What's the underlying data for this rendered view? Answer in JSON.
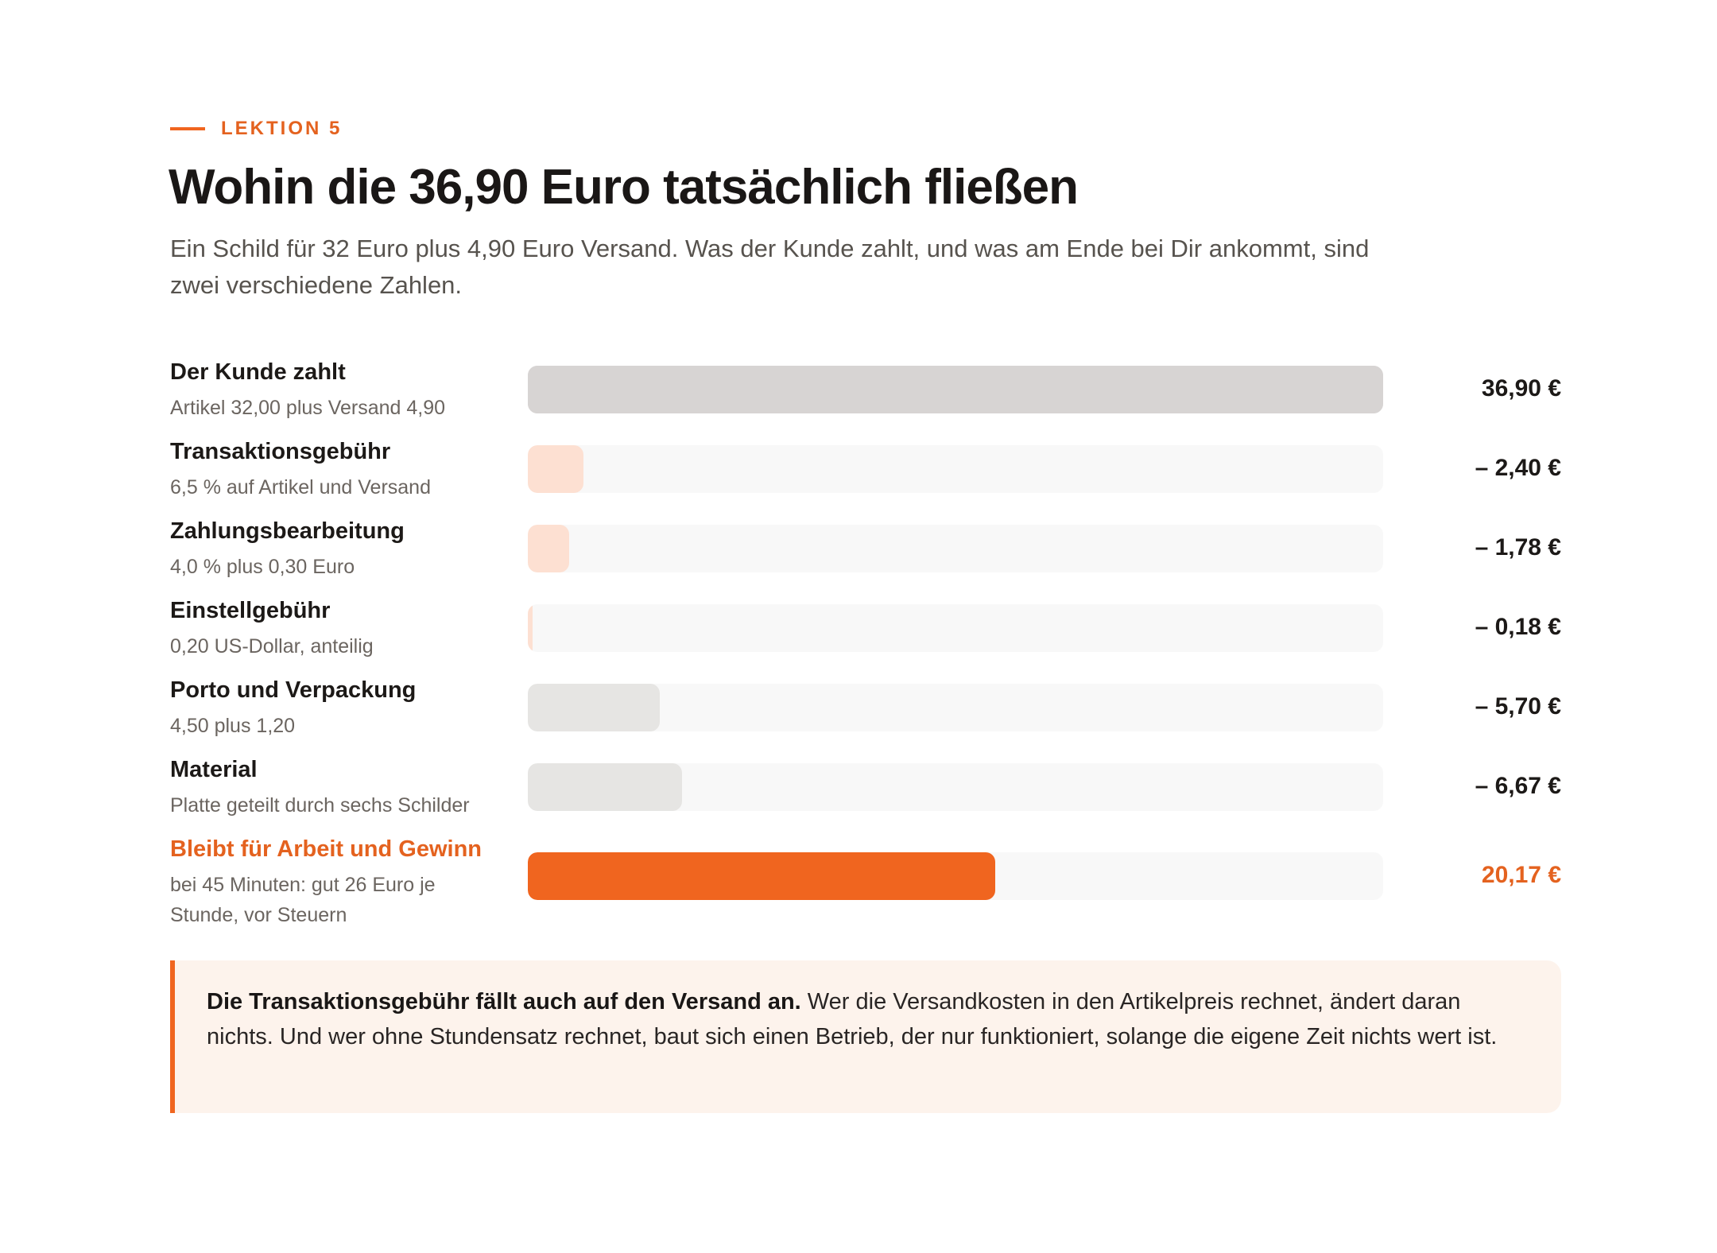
{
  "header": {
    "eyebrow": "LEKTION 5",
    "title": "Wohin die 36,90 Euro tatsächlich fließen",
    "subtitle": "Ein Schild für 32 Euro plus 4,90 Euro Versand. Was der Kunde zahlt, und was am Ende bei Dir ankommt, sind zwei verschiedene Zahlen."
  },
  "colors": {
    "accent": "#f0651f",
    "total_bar": "#d7d4d3",
    "fee_bar": "#fde0d2",
    "cost_bar": "#e6e5e3",
    "track": "#f8f8f8",
    "note_background": "#fdf3ec"
  },
  "chart_data": {
    "type": "bar",
    "orientation": "horizontal",
    "xlim": [
      0,
      36.9
    ],
    "rows": [
      {
        "label": "Der Kunde zahlt",
        "sublabel": "Artikel 32,00 plus Versand 4,90",
        "value": 36.9,
        "display": "36,90 €",
        "kind": "total"
      },
      {
        "label": "Transaktionsgebühr",
        "sublabel": "6,5 % auf Artikel und Versand",
        "value": 2.4,
        "display": "– 2,40 €",
        "kind": "fee"
      },
      {
        "label": "Zahlungsbearbeitung",
        "sublabel": "4,0 % plus 0,30 Euro",
        "value": 1.78,
        "display": "– 1,78 €",
        "kind": "fee"
      },
      {
        "label": "Einstellgebühr",
        "sublabel": "0,20 US-Dollar, anteilig",
        "value": 0.18,
        "display": "– 0,18 €",
        "kind": "fee"
      },
      {
        "label": "Porto und Verpackung",
        "sublabel": "4,50 plus 1,20",
        "value": 5.7,
        "display": "– 5,70 €",
        "kind": "cost"
      },
      {
        "label": "Material",
        "sublabel": "Platte geteilt durch sechs Schilder",
        "value": 6.67,
        "display": "– 6,67 €",
        "kind": "cost"
      },
      {
        "label": "Bleibt für Arbeit und Gewinn",
        "sublabel": "bei 45 Minuten: gut 26 Euro je Stunde, vor Steuern",
        "value": 20.17,
        "display": "20,17 €",
        "kind": "result"
      }
    ]
  },
  "note": {
    "bold": "Die Transaktionsgebühr fällt auch auf den Versand an.",
    "text": " Wer die Versandkosten in den Artikelpreis rechnet, ändert daran nichts. Und wer ohne Stundensatz rechnet, baut sich einen Betrieb, der nur funktioniert, solange die eigene Zeit nichts wert ist."
  }
}
